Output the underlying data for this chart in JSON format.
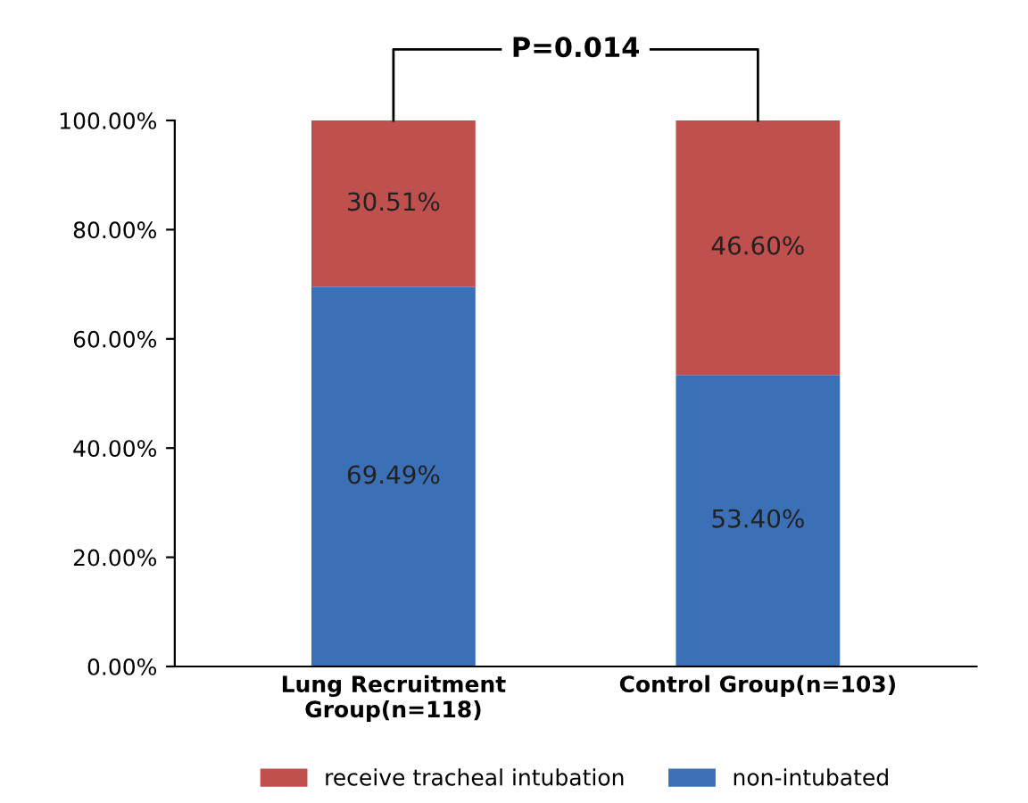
{
  "chart_data": {
    "type": "bar",
    "stacked": true,
    "categories": [
      "Lung Recruitment\nGroup(n=118)",
      "Control Group(n=103)"
    ],
    "series": [
      {
        "name": "non-intubated",
        "color": "#3b70b6",
        "values": [
          69.49,
          53.4
        ],
        "value_labels": [
          "69.49%",
          "53.40%"
        ]
      },
      {
        "name": "receive tracheal intubation",
        "color": "#c0504d",
        "values": [
          30.51,
          46.6
        ],
        "value_labels": [
          "30.51%",
          "46.60%"
        ]
      }
    ],
    "ylim": [
      0,
      100
    ],
    "yticks": [
      {
        "value": 0,
        "label": "0.00%"
      },
      {
        "value": 20,
        "label": "20.00%"
      },
      {
        "value": 40,
        "label": "40.00%"
      },
      {
        "value": 60,
        "label": "60.00%"
      },
      {
        "value": 80,
        "label": "80.00%"
      },
      {
        "value": 100,
        "label": "100.00%"
      }
    ],
    "grid": false,
    "legend": "bottom",
    "annotations": [
      "P=0.014"
    ]
  }
}
